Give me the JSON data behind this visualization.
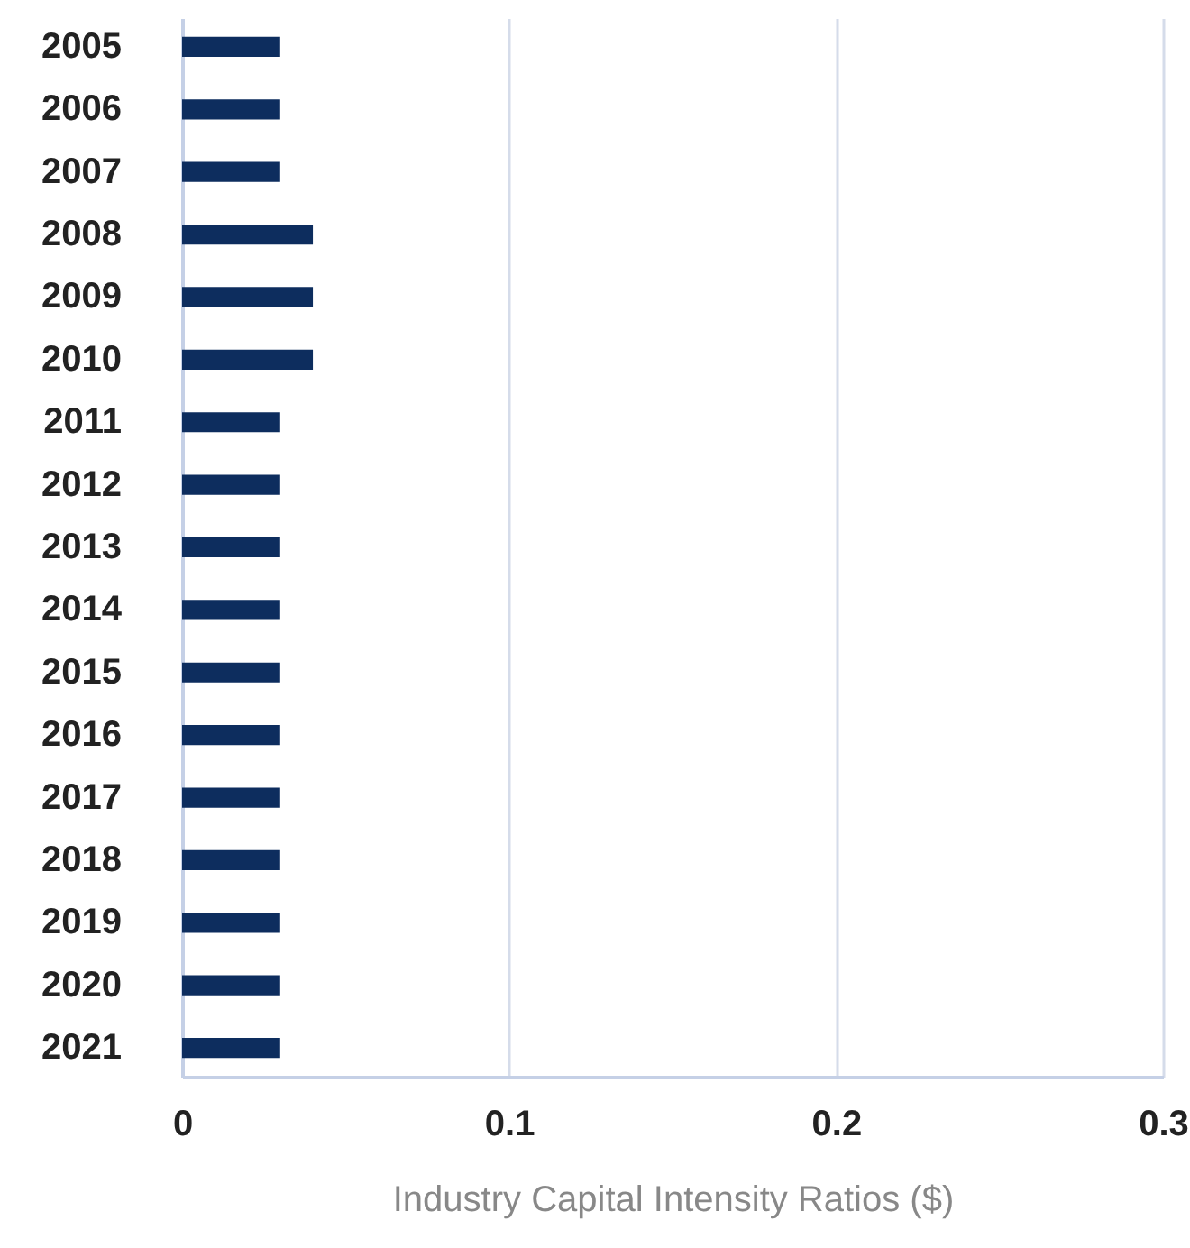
{
  "chart_data": {
    "type": "bar",
    "orientation": "horizontal",
    "xlabel": "Industry Capital Intensity Ratios ($)",
    "categories": [
      "2005",
      "2006",
      "2007",
      "2008",
      "2009",
      "2010",
      "2011",
      "2012",
      "2013",
      "2014",
      "2015",
      "2016",
      "2017",
      "2018",
      "2019",
      "2020",
      "2021"
    ],
    "values": [
      0.03,
      0.03,
      0.03,
      0.04,
      0.04,
      0.04,
      0.03,
      0.03,
      0.03,
      0.03,
      0.03,
      0.03,
      0.03,
      0.03,
      0.03,
      0.03,
      0.03
    ],
    "color": "#0d2d5e",
    "xlim": [
      0,
      0.3
    ],
    "xticks": [
      0,
      0.1,
      0.2,
      0.3
    ],
    "grid": "x"
  }
}
